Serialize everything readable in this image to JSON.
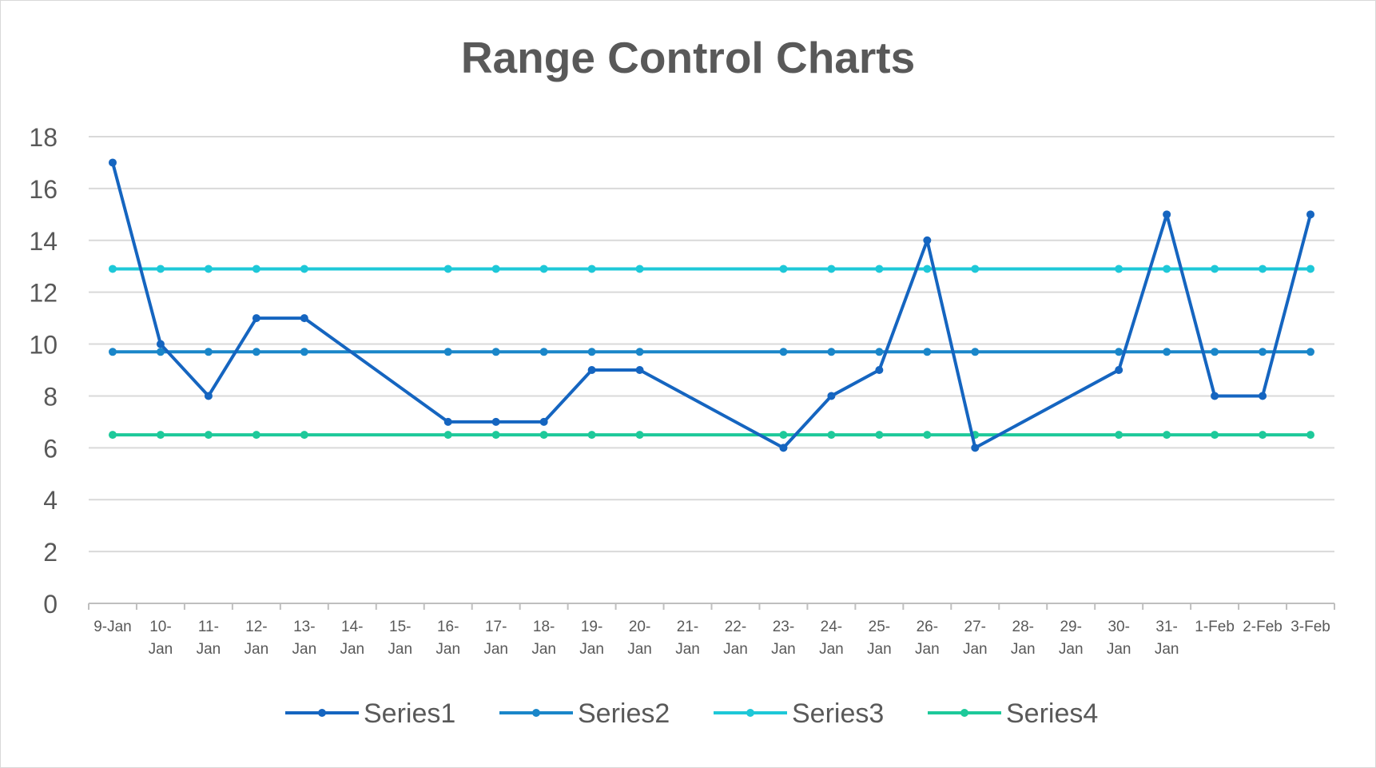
{
  "chart_data": {
    "type": "line",
    "title": "Range Control Charts",
    "xlabel": "",
    "ylabel": "",
    "ylim": [
      0,
      18
    ],
    "yticks": [
      0,
      2,
      4,
      6,
      8,
      10,
      12,
      14,
      16,
      18
    ],
    "grid": true,
    "legend_position": "bottom",
    "categories": [
      "9-Jan",
      "10-Jan",
      "11-Jan",
      "12-Jan",
      "13-Jan",
      "14-Jan",
      "15-Jan",
      "16-Jan",
      "17-Jan",
      "18-Jan",
      "19-Jan",
      "20-Jan",
      "21-Jan",
      "22-Jan",
      "23-Jan",
      "24-Jan",
      "25-Jan",
      "26-Jan",
      "27-Jan",
      "28-Jan",
      "29-Jan",
      "30-Jan",
      "31-Jan",
      "1-Feb",
      "2-Feb",
      "3-Feb"
    ],
    "series": [
      {
        "name": "Series1",
        "color": "#1565c0",
        "values": [
          17,
          10,
          8,
          11,
          11,
          null,
          null,
          7,
          7,
          7,
          9,
          9,
          null,
          null,
          6,
          8,
          9,
          14,
          6,
          null,
          null,
          9,
          15,
          8,
          8,
          15
        ]
      },
      {
        "name": "Series2",
        "color": "#1a86c9",
        "values": [
          9.7,
          9.7,
          9.7,
          9.7,
          9.7,
          null,
          null,
          9.7,
          9.7,
          9.7,
          9.7,
          9.7,
          null,
          null,
          9.7,
          9.7,
          9.7,
          9.7,
          9.7,
          null,
          null,
          9.7,
          9.7,
          9.7,
          9.7,
          9.7
        ]
      },
      {
        "name": "Series3",
        "color": "#1ec8d8",
        "values": [
          12.9,
          12.9,
          12.9,
          12.9,
          12.9,
          null,
          null,
          12.9,
          12.9,
          12.9,
          12.9,
          12.9,
          null,
          null,
          12.9,
          12.9,
          12.9,
          12.9,
          12.9,
          null,
          null,
          12.9,
          12.9,
          12.9,
          12.9,
          12.9
        ]
      },
      {
        "name": "Series4",
        "color": "#1ec99a",
        "values": [
          6.5,
          6.5,
          6.5,
          6.5,
          6.5,
          null,
          null,
          6.5,
          6.5,
          6.5,
          6.5,
          6.5,
          null,
          null,
          6.5,
          6.5,
          6.5,
          6.5,
          6.5,
          null,
          null,
          6.5,
          6.5,
          6.5,
          6.5,
          6.5
        ]
      }
    ]
  }
}
